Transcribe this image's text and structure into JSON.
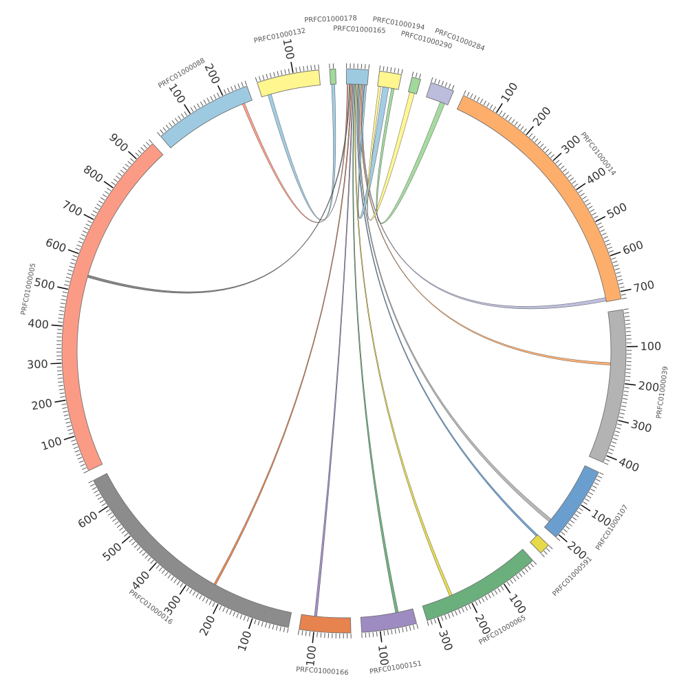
{
  "chart_data": {
    "type": "chord",
    "tick_minor": 10,
    "tick_major": 100,
    "segments": [
      {
        "name": "PRFC01000165",
        "length": 60,
        "color": "#9ecae1"
      },
      {
        "name": "PRFC01000194",
        "length": 60,
        "color": "#fff68f"
      },
      {
        "name": "PRFC01000290",
        "length": 24,
        "color": "#a1d99b"
      },
      {
        "name": "PRFC01000284",
        "length": 65,
        "color": "#bcbddc"
      },
      {
        "name": "PRFC01000014",
        "length": 720,
        "color": "#fdae6b"
      },
      {
        "name": "PRFC01000039",
        "length": 420,
        "color": "#b3b3b3"
      },
      {
        "name": "PRFC01000107",
        "length": 210,
        "color": "#6a9ecf"
      },
      {
        "name": "PRFC01000591",
        "length": 30,
        "color": "#e6d94a"
      },
      {
        "name": "PRFC01000065",
        "length": 330,
        "color": "#6baf7c"
      },
      {
        "name": "PRFC01000151",
        "length": 150,
        "color": "#9e8bc2"
      },
      {
        "name": "PRFC01000166",
        "length": 140,
        "color": "#e6834f"
      },
      {
        "name": "PRFC01000016",
        "length": 680,
        "color": "#8c8c8c"
      },
      {
        "name": "PRFC01000005",
        "length": 960,
        "color": "#fc9b85"
      },
      {
        "name": "PRFC01000088",
        "length": 270,
        "color": "#9ecae1"
      },
      {
        "name": "PRFC01000132",
        "length": 170,
        "color": "#fff68f"
      },
      {
        "name": "PRFC01000178",
        "length": 16,
        "color": "#a1d99b"
      }
    ],
    "links": [
      {
        "from": [
          13,
          240,
          247
        ],
        "to": [
          0,
          2,
          5
        ],
        "color": "#fc9b85"
      },
      {
        "from": [
          14,
          18,
          28
        ],
        "to": [
          15,
          3,
          12
        ],
        "color": "#9ecae1"
      },
      {
        "from": [
          12,
          545,
          552
        ],
        "to": [
          0,
          8,
          11
        ],
        "color": "#7f7f7f"
      },
      {
        "from": [
          11,
          230,
          236
        ],
        "to": [
          0,
          13,
          16
        ],
        "color": "#e6834f"
      },
      {
        "from": [
          10,
          96,
          103
        ],
        "to": [
          0,
          18,
          21
        ],
        "color": "#9e8bc2"
      },
      {
        "from": [
          9,
          42,
          50
        ],
        "to": [
          0,
          23,
          26
        ],
        "color": "#6baf7c"
      },
      {
        "from": [
          8,
          240,
          248
        ],
        "to": [
          0,
          28,
          31
        ],
        "color": "#e6d94a"
      },
      {
        "from": [
          7,
          0,
          6
        ],
        "to": [
          0,
          33,
          36
        ],
        "color": "#6a9ecf"
      },
      {
        "from": [
          6,
          180,
          190
        ],
        "to": [
          0,
          38,
          41
        ],
        "color": "#b3b3b3"
      },
      {
        "from": [
          5,
          145,
          152
        ],
        "to": [
          0,
          43,
          46
        ],
        "color": "#fdae6b"
      },
      {
        "from": [
          4,
          708,
          718
        ],
        "to": [
          0,
          48,
          51
        ],
        "color": "#bcbddc"
      },
      {
        "from": [
          1,
          15,
          32
        ],
        "to": [
          0,
          52,
          58
        ],
        "color": "#9ecae1"
      },
      {
        "from": [
          2,
          4,
          18
        ],
        "to": [
          1,
          3,
          10
        ],
        "color": "#fff68f"
      },
      {
        "from": [
          3,
          42,
          56
        ],
        "to": [
          1,
          40,
          48
        ],
        "color": "#a1d99b"
      }
    ]
  }
}
